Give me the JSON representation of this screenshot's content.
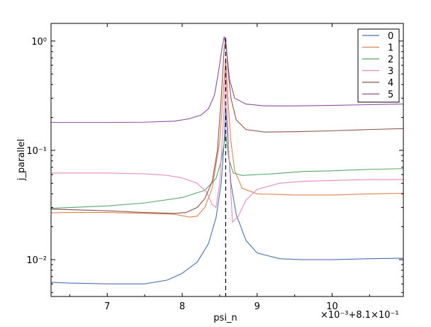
{
  "chart_data": {
    "type": "line",
    "title": "",
    "xlabel": "psi_n",
    "ylabel": "j_parallel",
    "x_offset_label": "×10⁻³+8.1×10⁻¹",
    "yscale": "log",
    "xlim": [
      6.25,
      10.95
    ],
    "ylim": [
      0.0046,
      1.45
    ],
    "x_ticks": [
      7,
      8,
      9,
      10
    ],
    "x_tick_labels": [
      "7",
      "8",
      "9",
      "10"
    ],
    "y_ticks": [
      0.01,
      0.1,
      1.0
    ],
    "y_tick_labels": [
      "10⁻²",
      "10⁻¹",
      "10⁰"
    ],
    "grid": false,
    "legend_position": "top-right",
    "vline_x": 8.58,
    "vline_style": "dashed",
    "series": [
      {
        "name": "0",
        "color": "#4c72b0",
        "points": [
          [
            6.25,
            0.0062
          ],
          [
            6.5,
            0.0061
          ],
          [
            7,
            0.006
          ],
          [
            7.5,
            0.006
          ],
          [
            7.8,
            0.0065
          ],
          [
            8.0,
            0.0075
          ],
          [
            8.2,
            0.0095
          ],
          [
            8.35,
            0.014
          ],
          [
            8.45,
            0.024
          ],
          [
            8.52,
            0.05
          ],
          [
            8.56,
            0.12
          ],
          [
            8.58,
            0.25
          ],
          [
            8.61,
            0.12
          ],
          [
            8.65,
            0.05
          ],
          [
            8.72,
            0.026
          ],
          [
            8.85,
            0.015
          ],
          [
            9.0,
            0.0115
          ],
          [
            9.3,
            0.0102
          ],
          [
            9.6,
            0.01
          ],
          [
            10,
            0.01
          ],
          [
            10.5,
            0.0102
          ],
          [
            10.95,
            0.0103
          ]
        ]
      },
      {
        "name": "1",
        "color": "#dd8452",
        "points": [
          [
            6.25,
            0.0268
          ],
          [
            6.5,
            0.027
          ],
          [
            7,
            0.027
          ],
          [
            7.5,
            0.0265
          ],
          [
            7.9,
            0.026
          ],
          [
            8.1,
            0.0245
          ],
          [
            8.2,
            0.025
          ],
          [
            8.3,
            0.03
          ],
          [
            8.4,
            0.045
          ],
          [
            8.5,
            0.12
          ],
          [
            8.56,
            0.45
          ],
          [
            8.58,
            0.7
          ],
          [
            8.61,
            0.3
          ],
          [
            8.65,
            0.12
          ],
          [
            8.7,
            0.065
          ],
          [
            8.8,
            0.045
          ],
          [
            9.0,
            0.04
          ],
          [
            9.5,
            0.039
          ],
          [
            10,
            0.039
          ],
          [
            10.5,
            0.04
          ],
          [
            10.95,
            0.0405
          ]
        ]
      },
      {
        "name": "2",
        "color": "#55a868",
        "points": [
          [
            6.25,
            0.0295
          ],
          [
            7,
            0.031
          ],
          [
            7.5,
            0.033
          ],
          [
            8.0,
            0.037
          ],
          [
            8.3,
            0.043
          ],
          [
            8.45,
            0.055
          ],
          [
            8.52,
            0.08
          ],
          [
            8.58,
            0.14
          ],
          [
            8.62,
            0.085
          ],
          [
            8.68,
            0.062
          ],
          [
            8.8,
            0.059
          ],
          [
            9.2,
            0.061
          ],
          [
            9.6,
            0.064
          ],
          [
            10,
            0.065
          ],
          [
            10.5,
            0.067
          ],
          [
            10.95,
            0.068
          ]
        ]
      },
      {
        "name": "3",
        "color": "#e78ac3",
        "points": [
          [
            6.25,
            0.062
          ],
          [
            6.5,
            0.062
          ],
          [
            7,
            0.062
          ],
          [
            7.5,
            0.061
          ],
          [
            7.8,
            0.059
          ],
          [
            8.0,
            0.056
          ],
          [
            8.2,
            0.05
          ],
          [
            8.32,
            0.042
          ],
          [
            8.4,
            0.032
          ],
          [
            8.45,
            0.03
          ],
          [
            8.5,
            0.05
          ],
          [
            8.56,
            0.25
          ],
          [
            8.58,
            0.6
          ],
          [
            8.62,
            0.1
          ],
          [
            8.67,
            0.022
          ],
          [
            8.75,
            0.025
          ],
          [
            8.85,
            0.035
          ],
          [
            9.0,
            0.044
          ],
          [
            9.3,
            0.05
          ],
          [
            9.6,
            0.052
          ],
          [
            10,
            0.053
          ],
          [
            10.5,
            0.054
          ],
          [
            10.95,
            0.054
          ]
        ]
      },
      {
        "name": "4",
        "color": "#8c564b",
        "points": [
          [
            6.25,
            0.029
          ],
          [
            7,
            0.028
          ],
          [
            7.5,
            0.027
          ],
          [
            7.9,
            0.0265
          ],
          [
            8.05,
            0.027
          ],
          [
            8.2,
            0.03
          ],
          [
            8.3,
            0.036
          ],
          [
            8.4,
            0.052
          ],
          [
            8.47,
            0.1
          ],
          [
            8.52,
            0.3
          ],
          [
            8.56,
            0.85
          ],
          [
            8.58,
            1.05
          ],
          [
            8.61,
            0.55
          ],
          [
            8.65,
            0.3
          ],
          [
            8.72,
            0.19
          ],
          [
            8.85,
            0.155
          ],
          [
            9.1,
            0.147
          ],
          [
            9.5,
            0.148
          ],
          [
            10,
            0.151
          ],
          [
            10.5,
            0.155
          ],
          [
            10.95,
            0.158
          ]
        ]
      },
      {
        "name": "5",
        "color": "#8c4f9e",
        "points": [
          [
            6.25,
            0.18
          ],
          [
            6.5,
            0.18
          ],
          [
            7,
            0.18
          ],
          [
            7.5,
            0.181
          ],
          [
            7.9,
            0.185
          ],
          [
            8.1,
            0.195
          ],
          [
            8.25,
            0.21
          ],
          [
            8.35,
            0.24
          ],
          [
            8.43,
            0.32
          ],
          [
            8.48,
            0.5
          ],
          [
            8.53,
            0.85
          ],
          [
            8.56,
            1.1
          ],
          [
            8.59,
            0.85
          ],
          [
            8.63,
            0.45
          ],
          [
            8.7,
            0.3
          ],
          [
            8.85,
            0.265
          ],
          [
            9.1,
            0.255
          ],
          [
            9.5,
            0.255
          ],
          [
            10,
            0.258
          ],
          [
            10.5,
            0.262
          ],
          [
            10.95,
            0.265
          ]
        ]
      }
    ]
  }
}
